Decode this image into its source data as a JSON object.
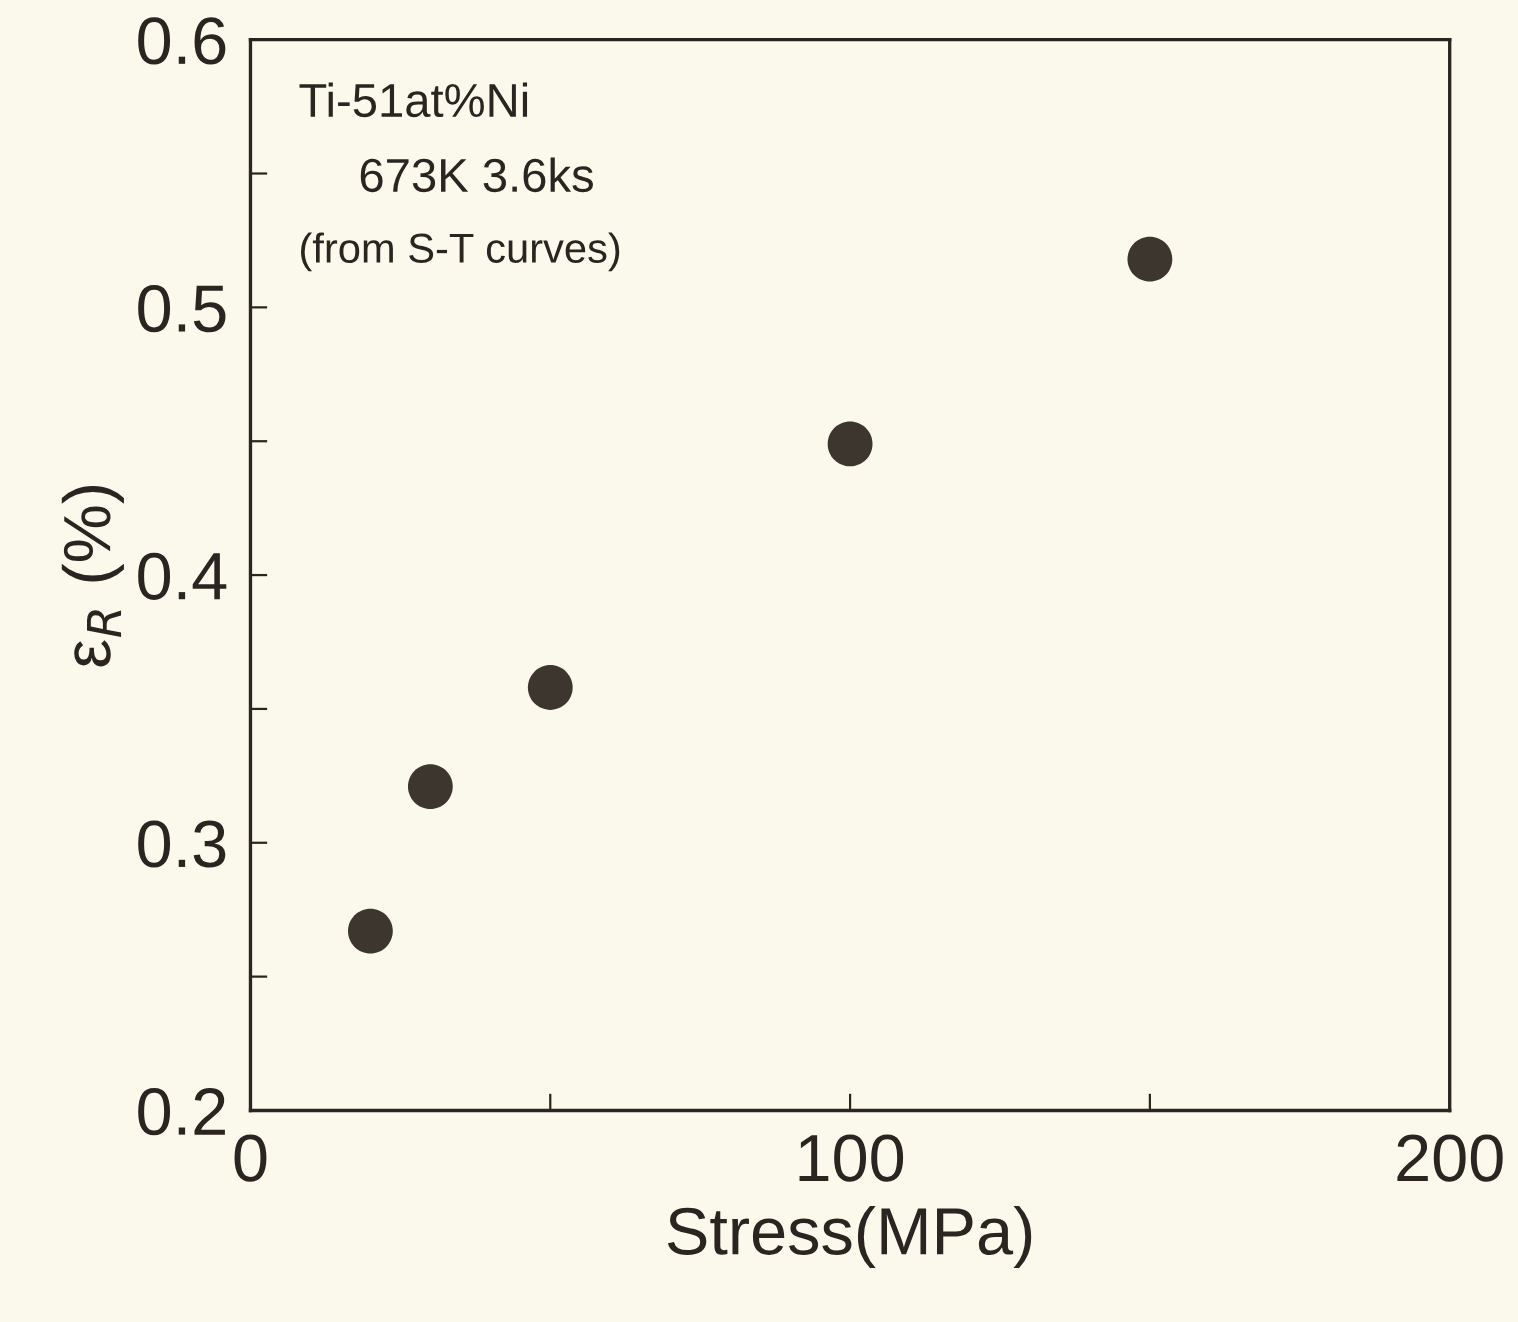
{
  "chart_data": {
    "type": "scatter",
    "xlabel": "Stress(MPa)",
    "ylabel": "ε$_{R}$ (%)",
    "x": [
      20,
      30,
      50,
      100,
      150
    ],
    "series": [
      {
        "color": "#3d362e",
        "values": [
          0.267,
          0.321,
          0.358,
          0.449,
          0.518
        ]
      }
    ],
    "xlim": [
      0,
      200
    ],
    "ylim": [
      0.2,
      0.6
    ],
    "xticks": [
      0,
      {
        "value": 50,
        "label": null
      },
      100,
      {
        "value": 150,
        "label": null
      },
      200
    ],
    "yticks": [
      0.2,
      {
        "value": 0.25,
        "label": null
      },
      0.3,
      {
        "value": 0.35,
        "label": null
      },
      0.4,
      {
        "value": 0.45,
        "label": null
      },
      0.5,
      {
        "value": 0.55,
        "label": null
      },
      0.6
    ],
    "annotations": [
      "Ti-51at%Ni",
      "673K 3.6ks",
      "(from S-T curves)"
    ],
    "marker": "circle",
    "grid": false,
    "legend": false
  }
}
